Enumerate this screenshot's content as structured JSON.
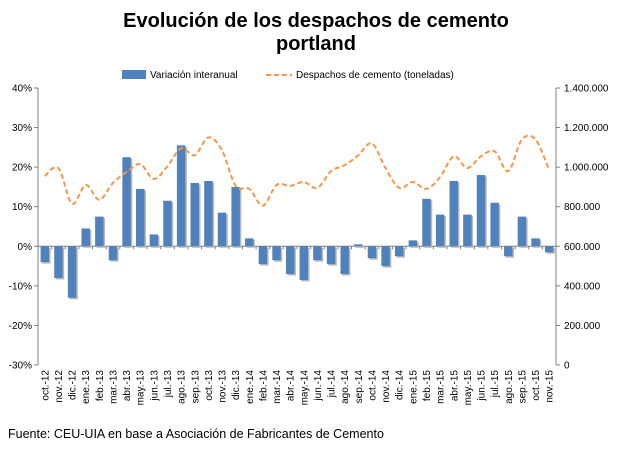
{
  "title_line1": "Evolución de los despachos de cemento",
  "title_line2": "portland",
  "source": "Fuente: CEU-UIA en base a Asociación de Fabricantes de Cemento",
  "chart_data": {
    "type": "bar",
    "categories": [
      "oct.-12",
      "nov.-12",
      "dic.-12",
      "ene.-13",
      "feb.-13",
      "mar.-13",
      "abr.-13",
      "may.-13",
      "jun.-13",
      "jul.-13",
      "ago.-13",
      "sep.-13",
      "oct.-13",
      "nov.-13",
      "dic.-13",
      "ene.-14",
      "feb.-14",
      "mar.-14",
      "abr.-14",
      "may.-14",
      "jun.-14",
      "jul.-14",
      "ago.-14",
      "sep.-14",
      "oct.-14",
      "nov.-14",
      "dic.-14",
      "ene.-15",
      "feb.-15",
      "mar.-15",
      "abr.-15",
      "may.-15",
      "jun.-15",
      "jul.-15",
      "ago.-15",
      "sep.-15",
      "oct.-15",
      "nov.-15"
    ],
    "series": [
      {
        "name": "Variación interanual",
        "type": "bar",
        "axis": "left",
        "color": "#4f81bd",
        "values": [
          -4,
          -8,
          -13,
          4.5,
          7.5,
          -3.5,
          22.5,
          14.5,
          3,
          11.5,
          25.5,
          16,
          16.5,
          8.5,
          15,
          2,
          -4.5,
          -3.5,
          -7,
          -8.5,
          -3.5,
          -4.5,
          -7,
          0.5,
          -3,
          -5,
          -2.5,
          1.5,
          12,
          8,
          16.5,
          8,
          18,
          11,
          -2.5,
          7.5,
          2,
          -1.5
        ]
      },
      {
        "name": "Despachos de cemento (toneladas)",
        "type": "line",
        "axis": "right",
        "color": "#f79646",
        "dashed": true,
        "values": [
          955000,
          995000,
          815000,
          910000,
          835000,
          920000,
          975000,
          1015000,
          940000,
          1005000,
          1095000,
          1060000,
          1150000,
          1085000,
          905000,
          890000,
          805000,
          910000,
          905000,
          925000,
          895000,
          980000,
          1010000,
          1060000,
          1120000,
          995000,
          895000,
          925000,
          890000,
          950000,
          1055000,
          995000,
          1055000,
          1080000,
          980000,
          1140000,
          1140000,
          985000
        ]
      }
    ],
    "y_left": {
      "lim": [
        -30,
        40
      ],
      "ticks": [
        "-30%",
        "-20%",
        "-10%",
        "0%",
        "10%",
        "20%",
        "30%",
        "40%"
      ]
    },
    "y_right": {
      "lim": [
        0,
        1400000
      ],
      "ticks": [
        "0",
        "200.000",
        "400.000",
        "600.000",
        "800.000",
        "1.000.000",
        "1.200.000",
        "1.400.000"
      ]
    },
    "legend": {
      "placement": "top"
    },
    "grid": false
  }
}
